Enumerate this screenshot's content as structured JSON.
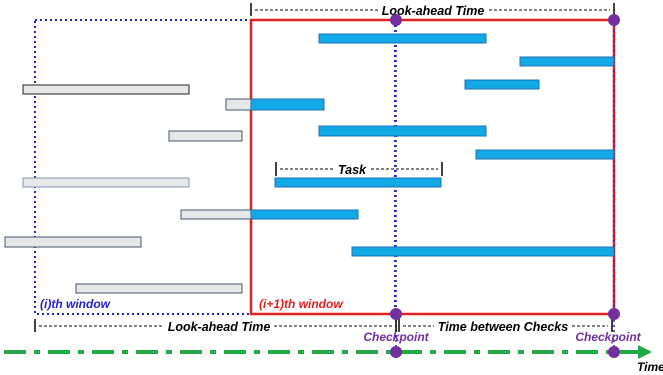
{
  "labels": {
    "look_ahead_top": "Look-ahead Time",
    "look_ahead_bottom": "Look-ahead Time",
    "task": "Task",
    "window_i": "(i)th window",
    "window_i1": "(i+1)th window",
    "time_between_checks": "Time between Checks",
    "checkpoint_1": "Checkpoint",
    "checkpoint_2": "Checkpoint",
    "time_axis": "Time"
  },
  "colors": {
    "window_i_border": "#2222cc",
    "window_i1_border": "#e02020",
    "future_task_fill": "#12a9e6",
    "future_task_border": "#1f6fb5",
    "past_task_fill": "#e6e7e9",
    "past_task_border": "#44546a",
    "checkpoint_marker": "#7030a0",
    "checkpoint_line": "#2222cc",
    "time_arrow": "#22aa44",
    "label_text": "#000000",
    "window_i_label": "#2222cc",
    "window_i1_label": "#e02020",
    "checkpoint_label": "#7030a0"
  }
}
